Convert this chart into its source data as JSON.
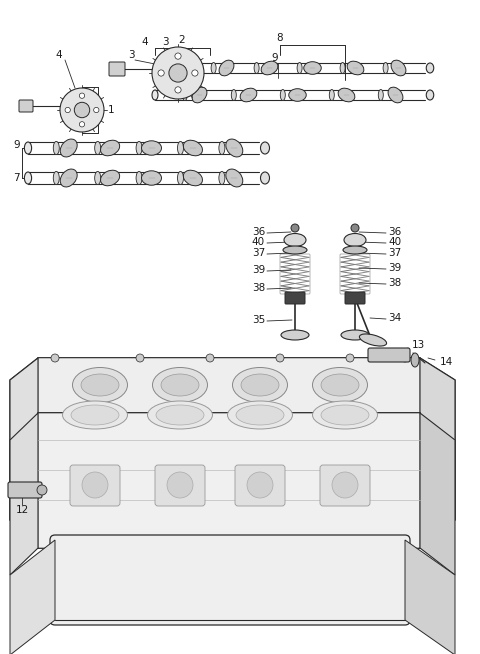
{
  "bg_color": "#ffffff",
  "line_color": "#2a2a2a",
  "label_color": "#1a1a1a",
  "fig_width": 4.8,
  "fig_height": 6.54,
  "dpi": 100
}
